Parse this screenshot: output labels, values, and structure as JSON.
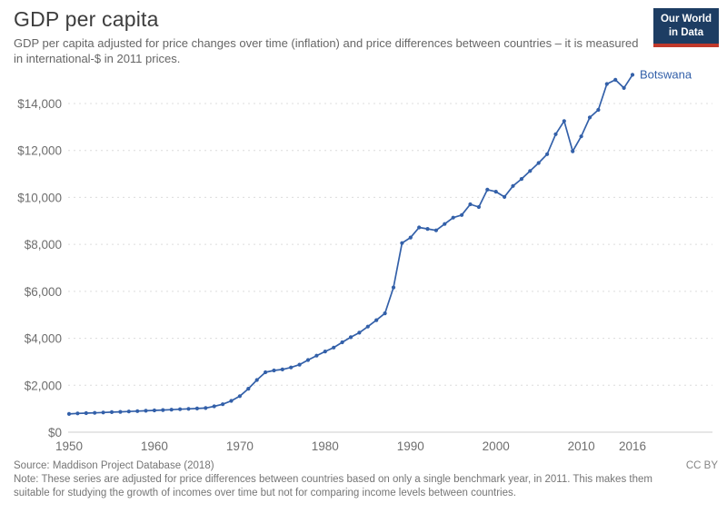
{
  "header": {
    "title": "GDP per capita",
    "subtitle": "GDP per capita adjusted for price changes over time (inflation) and price differences between countries – it is measured in international-$ in 2011 prices.",
    "logo": {
      "line1": "Our World",
      "line2": "in Data",
      "bg_color": "#1d3d63",
      "accent_color": "#c0392b",
      "text_color": "#ffffff"
    }
  },
  "chart_data": {
    "type": "line",
    "title": "GDP per capita",
    "xlabel": "",
    "ylabel": "international-$ in 2011 prices",
    "xlim": [
      1950,
      2016
    ],
    "ylim": [
      0,
      15500
    ],
    "grid": true,
    "gridline_style": "dashed",
    "legend_position": "end-of-line",
    "line_color": "#3360a9",
    "x": [
      1950,
      1951,
      1952,
      1953,
      1954,
      1955,
      1956,
      1957,
      1958,
      1959,
      1960,
      1961,
      1962,
      1963,
      1964,
      1965,
      1966,
      1967,
      1968,
      1969,
      1970,
      1971,
      1972,
      1973,
      1974,
      1975,
      1976,
      1977,
      1978,
      1979,
      1980,
      1981,
      1982,
      1983,
      1984,
      1985,
      1986,
      1987,
      1988,
      1989,
      1990,
      1991,
      1992,
      1993,
      1994,
      1995,
      1996,
      1997,
      1998,
      1999,
      2000,
      2001,
      2002,
      2003,
      2004,
      2005,
      2006,
      2007,
      2008,
      2009,
      2010,
      2011,
      2012,
      2013,
      2014,
      2015,
      2016
    ],
    "series": [
      {
        "name": "Botswana",
        "color": "#3360a9",
        "values": [
          777,
          799,
          812,
          825,
          839,
          853,
          867,
          882,
          897,
          912,
          928,
          944,
          960,
          977,
          994,
          1011,
          1029,
          1101,
          1191,
          1333,
          1535,
          1853,
          2223,
          2551,
          2628,
          2674,
          2758,
          2877,
          3075,
          3260,
          3438,
          3603,
          3829,
          4045,
          4237,
          4499,
          4772,
          5062,
          6166,
          8056,
          8290,
          8721,
          8658,
          8598,
          8867,
          9139,
          9251,
          9706,
          9592,
          10329,
          10244,
          10020,
          10489,
          10786,
          11128,
          11465,
          11841,
          12691,
          13255,
          11965,
          12601,
          13406,
          13730,
          14831,
          15011,
          14663,
          15221
        ]
      }
    ],
    "x_ticks": [
      {
        "v": 1950,
        "label": "1950"
      },
      {
        "v": 1960,
        "label": "1960"
      },
      {
        "v": 1970,
        "label": "1970"
      },
      {
        "v": 1980,
        "label": "1980"
      },
      {
        "v": 1990,
        "label": "1990"
      },
      {
        "v": 2000,
        "label": "2000"
      },
      {
        "v": 2010,
        "label": "2010"
      },
      {
        "v": 2016,
        "label": "2016"
      }
    ],
    "y_ticks": [
      {
        "v": 0,
        "label": "$0"
      },
      {
        "v": 2000,
        "label": "$2,000"
      },
      {
        "v": 4000,
        "label": "$4,000"
      },
      {
        "v": 6000,
        "label": "$6,000"
      },
      {
        "v": 8000,
        "label": "$8,000"
      },
      {
        "v": 10000,
        "label": "$10,000"
      },
      {
        "v": 12000,
        "label": "$12,000"
      },
      {
        "v": 14000,
        "label": "$14,000"
      }
    ]
  },
  "footer": {
    "source": "Source: Maddison Project Database (2018)",
    "license": "CC BY",
    "note": "Note: These series are adjusted for price differences between countries based on only a single benchmark year, in 2011. This makes them suitable for studying the growth of incomes over time but not for comparing income levels between countries."
  }
}
